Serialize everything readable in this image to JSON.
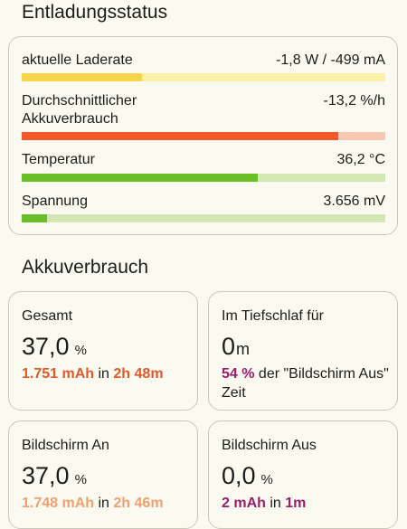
{
  "discharge": {
    "title": "Entladungsstatus",
    "metrics": [
      {
        "label": "aktuelle Laderate",
        "value": "-1,8 W / -499 mA",
        "fill_fraction": 0.33,
        "fill_color": "#f7d54a",
        "track_color": "#fbf1a9"
      },
      {
        "label": "Durchschnittlicher Akkuverbrauch",
        "value": "-13,2 %/h",
        "fill_fraction": 0.87,
        "fill_color": "#f4592a",
        "track_color": "#f8c8b2"
      },
      {
        "label": "Temperatur",
        "value": "36,2 °C",
        "fill_fraction": 0.65,
        "fill_color": "#69be28",
        "track_color": "#d2e7b4"
      },
      {
        "label": "Spannung",
        "value": "3.656 mV",
        "fill_fraction": 0.07,
        "fill_color": "#69be28",
        "track_color": "#d2e7b4"
      }
    ]
  },
  "usage": {
    "title": "Akkuverbrauch",
    "tiles": {
      "total": {
        "title": "Gesamt",
        "value": "37,0",
        "unit": "%",
        "mah": "1.751 mAh",
        "in": "in",
        "time": "2h 48m"
      },
      "deep_sleep": {
        "title": "Im Tiefschlaf für",
        "value": "0",
        "unit": "m",
        "percent": "54 %",
        "suffix": "der \"Bildschirm Aus\" Zeit"
      },
      "screen_on": {
        "title": "Bildschirm An",
        "value": "37,0",
        "unit": "%",
        "mah": "1.748 mAh",
        "in": "in",
        "time": "2h 46m"
      },
      "screen_off": {
        "title": "Bildschirm Aus",
        "value": "0,0",
        "unit": "%",
        "mah": "2 mAh",
        "in": "in",
        "time": "1m"
      }
    }
  }
}
